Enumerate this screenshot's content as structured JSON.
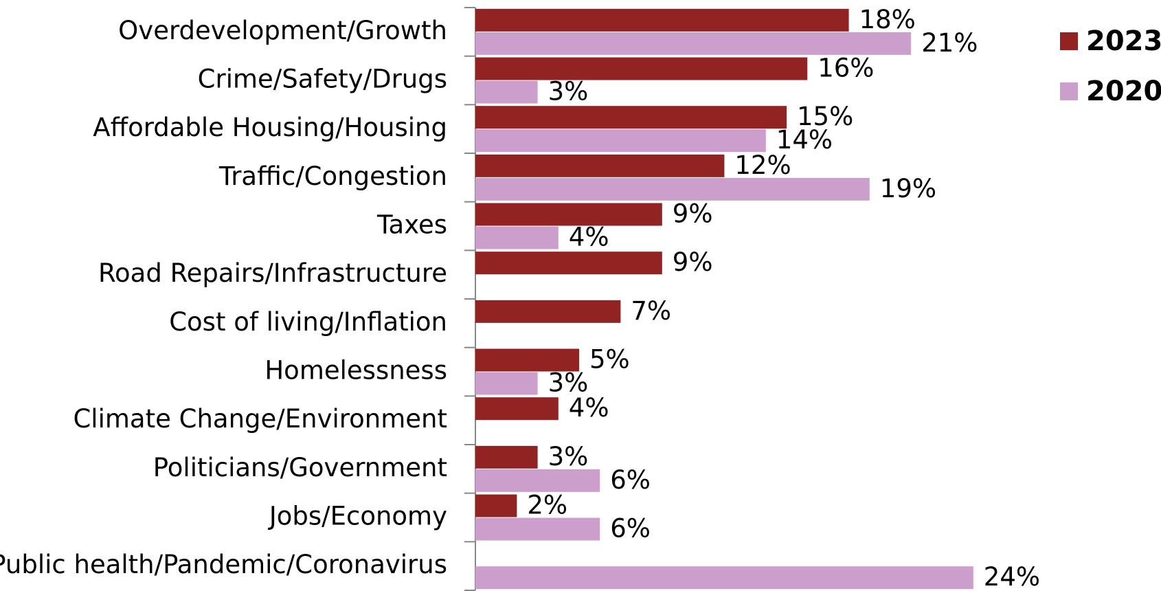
{
  "chart_data": {
    "type": "hbar",
    "categories": [
      "Overdevelopment/Growth",
      "Crime/Safety/Drugs",
      "Affordable Housing/Housing",
      "Traffic/Congestion",
      "Taxes",
      "Road Repairs/Infrastructure",
      "Cost of living/Inflation",
      "Homelessness",
      "Climate Change/Environment",
      "Politicians/Government",
      "Jobs/Economy",
      "Public health/Pandemic/Coronavirus"
    ],
    "series": [
      {
        "name": "2023",
        "color": "#922323",
        "values": [
          18,
          16,
          15,
          12,
          9,
          9,
          7,
          5,
          4,
          3,
          2,
          null
        ],
        "value_labels": [
          "18%",
          "16%",
          "15%",
          "12%",
          "9%",
          "9%",
          "7%",
          "5%",
          "4%",
          "3%",
          "2%",
          null
        ]
      },
      {
        "name": "2020",
        "color": "#cc9ecb",
        "values": [
          21,
          3,
          14,
          19,
          4,
          null,
          null,
          3,
          null,
          6,
          6,
          24
        ],
        "value_labels": [
          "21%",
          "3%",
          "14%",
          "19%",
          "4%",
          null,
          null,
          "3%",
          null,
          "6%",
          "6%",
          "24%"
        ]
      }
    ],
    "xlim": [
      0,
      25
    ]
  }
}
